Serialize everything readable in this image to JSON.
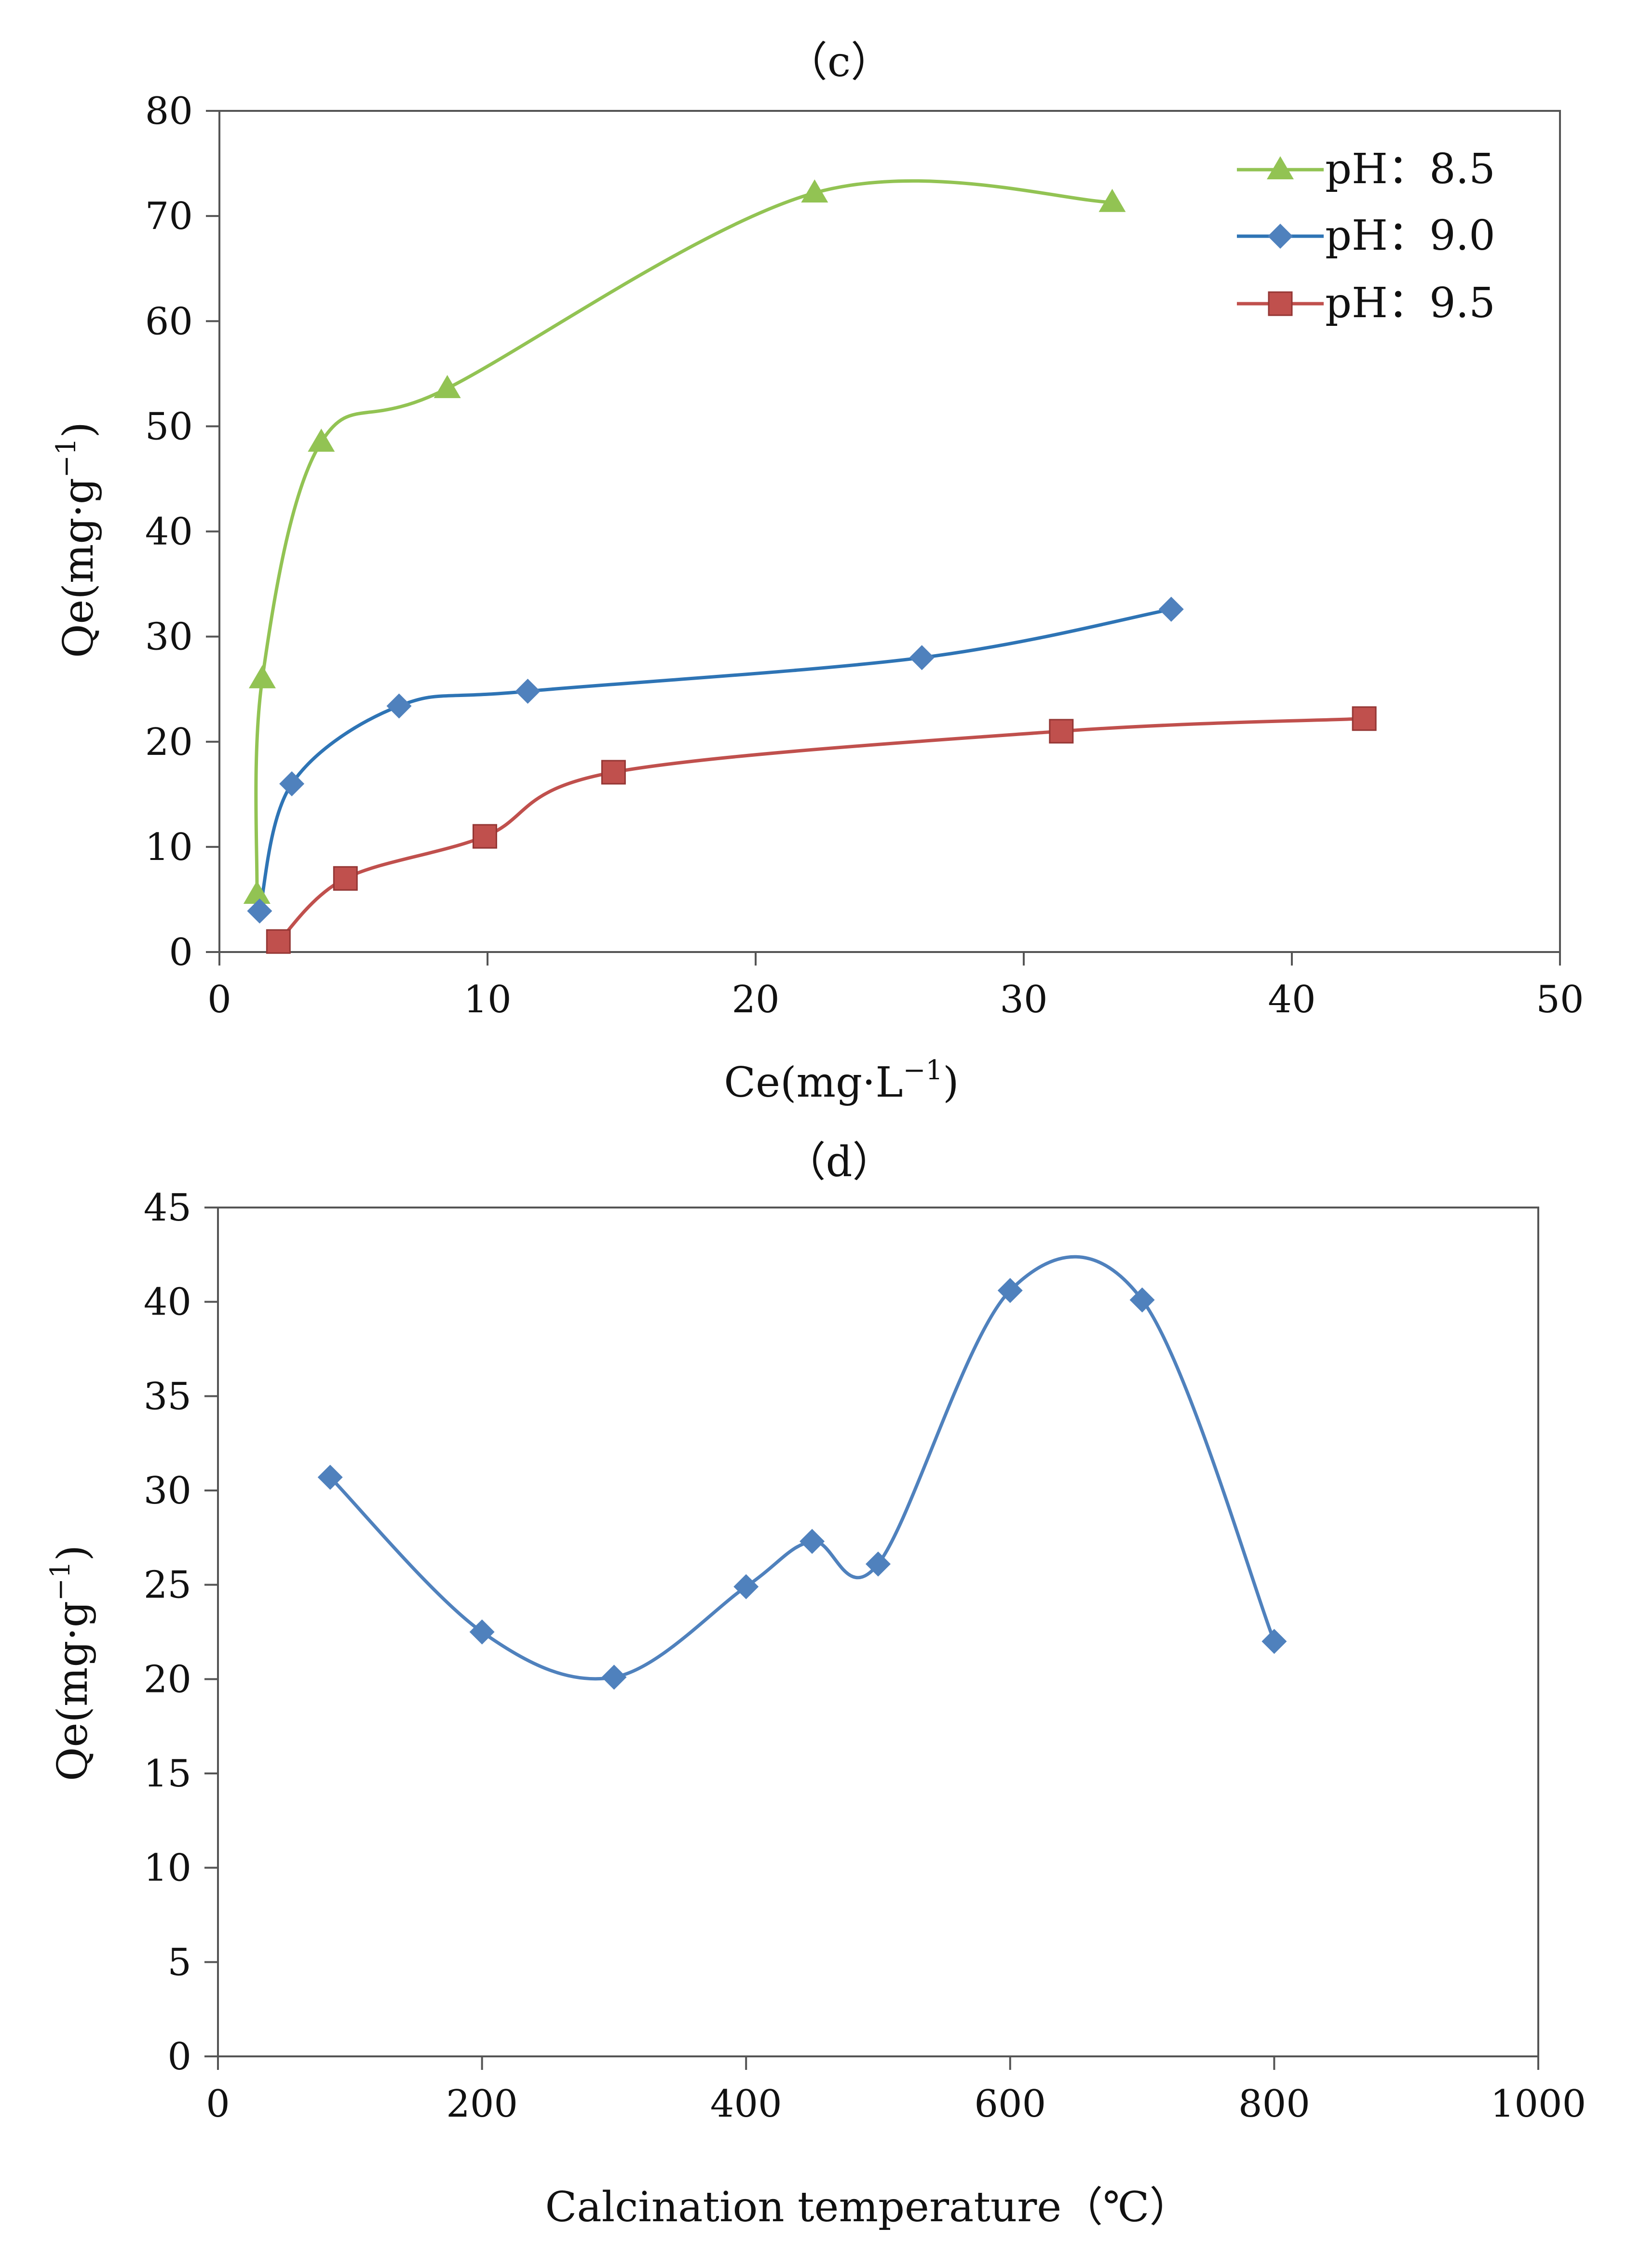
{
  "chart_data": [
    {
      "type": "line",
      "title": "（c）",
      "xlabel": "Ce(mg·L",
      "xlabel_sup": "−1",
      "xlabel_close": ")",
      "ylabel": "Qe(mg·g",
      "ylabel_sup": "−1",
      "ylabel_close": ")",
      "xlim": [
        0,
        50
      ],
      "ylim": [
        0,
        80
      ],
      "xticks": [
        0,
        10,
        20,
        30,
        40,
        50
      ],
      "yticks": [
        0,
        10,
        20,
        30,
        40,
        50,
        60,
        70,
        80
      ],
      "grid": false,
      "legend_position": "top-right",
      "series": [
        {
          "name": "pH：8.5",
          "color": "#92C353",
          "marker": "triangle",
          "x": [
            1.4,
            1.6,
            3.8,
            8.5,
            22.2,
            33.3
          ],
          "y": [
            5.5,
            26.0,
            48.5,
            53.6,
            72.2,
            71.3
          ]
        },
        {
          "name": "pH：9.0",
          "color": "#2E74B5",
          "marker": "diamond",
          "x": [
            1.5,
            2.7,
            6.7,
            11.5,
            26.2,
            35.5
          ],
          "y": [
            3.9,
            16.0,
            23.4,
            24.8,
            28.0,
            32.6
          ]
        },
        {
          "name": "pH：9.5",
          "color": "#C0504D",
          "marker": "square",
          "x": [
            2.2,
            4.7,
            9.9,
            14.7,
            31.4,
            42.7
          ],
          "y": [
            1.0,
            7.0,
            11.0,
            17.1,
            21.0,
            22.2
          ]
        }
      ]
    },
    {
      "type": "line",
      "title": "（d）",
      "xlabel": "Calcination temperature（℃）",
      "ylabel": "Qe(mg·g",
      "ylabel_sup": "−1",
      "ylabel_close": ")",
      "xlim": [
        0,
        1000
      ],
      "ylim": [
        0,
        45
      ],
      "xticks": [
        0,
        200,
        400,
        600,
        800,
        1000
      ],
      "yticks": [
        0,
        5,
        10,
        15,
        20,
        25,
        30,
        35,
        40,
        45
      ],
      "grid": false,
      "series": [
        {
          "name": "Qe",
          "color": "#4F81BD",
          "marker": "diamond",
          "x": [
            85,
            200,
            300,
            400,
            450,
            500,
            600,
            700,
            800
          ],
          "y": [
            30.7,
            22.5,
            20.1,
            24.9,
            27.3,
            26.1,
            40.6,
            40.1,
            22.0
          ]
        }
      ]
    }
  ]
}
